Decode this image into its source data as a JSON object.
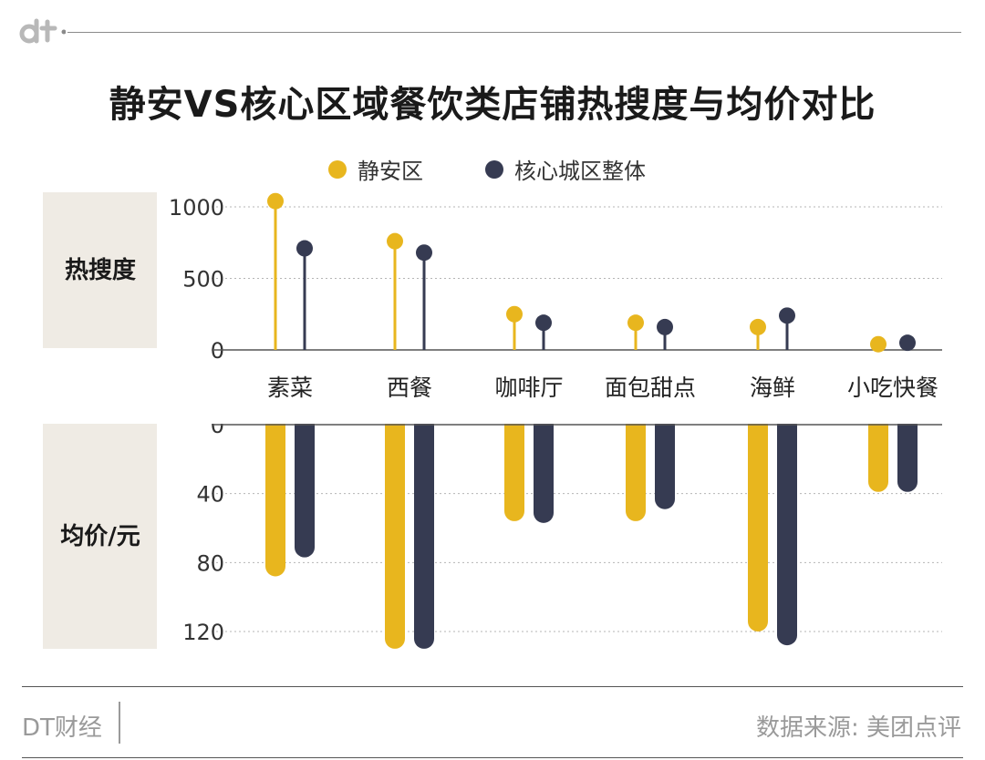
{
  "header": {
    "logo_text": "dt",
    "title": "静安VS核心区域餐饮类店铺热搜度与均价对比"
  },
  "legend": [
    {
      "label": "静安区",
      "color": "#E8B61E"
    },
    {
      "label": "核心城区整体",
      "color": "#363B52"
    }
  ],
  "footer": {
    "brand": "DT财经",
    "source": "数据来源: 美团点评"
  },
  "chart_data": [
    {
      "type": "lollipop",
      "panel_label": "热搜度",
      "categories": [
        "素菜",
        "西餐",
        "咖啡厅",
        "面包甜点",
        "海鲜",
        "小吃快餐"
      ],
      "series": [
        {
          "name": "静安区",
          "values": [
            1040,
            760,
            250,
            190,
            160,
            40
          ],
          "color": "#E8B61E"
        },
        {
          "name": "核心城区整体",
          "values": [
            710,
            680,
            190,
            160,
            240,
            50
          ],
          "color": "#363B52"
        }
      ],
      "ylim": [
        0,
        1000
      ],
      "yticks": [
        0,
        500,
        1000
      ],
      "grid": true
    },
    {
      "type": "bar",
      "orientation": "downward",
      "panel_label": "均价/元",
      "categories": [
        "素菜",
        "西餐",
        "咖啡厅",
        "面包甜点",
        "海鲜",
        "小吃快餐"
      ],
      "series": [
        {
          "name": "静安区",
          "values": [
            88,
            130,
            56,
            56,
            120,
            39
          ],
          "color": "#E8B61E"
        },
        {
          "name": "核心城区整体",
          "values": [
            77,
            130,
            57,
            49,
            128,
            39
          ],
          "color": "#363B52"
        }
      ],
      "ylim": [
        0,
        120
      ],
      "yticks": [
        0,
        40,
        80,
        120
      ],
      "grid": true
    }
  ]
}
